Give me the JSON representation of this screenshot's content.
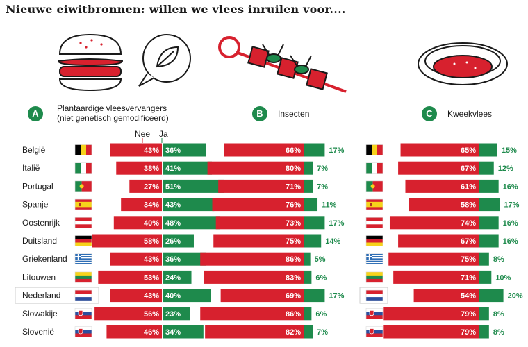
{
  "title": "Nieuwe eiwitbronnen: willen we vlees inruilen voor....",
  "colors": {
    "red": "#d7212e",
    "green": "#1e8a4c",
    "highlight_border": "#cfcfcf"
  },
  "groups": [
    {
      "badge": "A",
      "title_line1": "Plantaardige vleesvervangers",
      "title_line2": "(niet genetisch gemodificeerd)",
      "illustration": "burger-leaf-icon",
      "nee_label": "Nee",
      "ja_label": "Ja"
    },
    {
      "badge": "B",
      "title_line1": "Insecten",
      "illustration": "insect-skewer-icon"
    },
    {
      "badge": "C",
      "title_line1": "Kweekvlees",
      "illustration": "petri-dish-icon"
    }
  ],
  "highlighted_country": "Nederland",
  "chart_data": {
    "type": "bar",
    "categories": [
      "België",
      "Italië",
      "Portugal",
      "Spanje",
      "Oostenrijk",
      "Duitsland",
      "Griekenland",
      "Litouwen",
      "Nederland",
      "Slowakije",
      "Slovenië"
    ],
    "flags": [
      "flag-be",
      "flag-it",
      "flag-pt",
      "flag-es",
      "flag-at",
      "flag-de",
      "flag-gr",
      "flag-lt",
      "flag-nl",
      "flag-sk",
      "flag-si"
    ],
    "groups": [
      {
        "name": "Plantaardige vleesvervangers",
        "series": [
          {
            "name": "Nee",
            "values": [
              43,
              38,
              27,
              34,
              40,
              58,
              43,
              53,
              43,
              56,
              46
            ]
          },
          {
            "name": "Ja",
            "values": [
              36,
              41,
              51,
              43,
              48,
              26,
              36,
              24,
              40,
              23,
              34
            ]
          }
        ]
      },
      {
        "name": "Insecten",
        "series": [
          {
            "name": "Nee",
            "values": [
              66,
              80,
              71,
              76,
              73,
              75,
              86,
              83,
              69,
              86,
              82
            ]
          },
          {
            "name": "Ja",
            "values": [
              17,
              7,
              7,
              11,
              17,
              14,
              5,
              6,
              17,
              6,
              7
            ]
          }
        ]
      },
      {
        "name": "Kweekvlees",
        "series": [
          {
            "name": "Nee",
            "values": [
              65,
              67,
              61,
              58,
              74,
              67,
              75,
              71,
              54,
              79,
              79
            ]
          },
          {
            "name": "Ja",
            "values": [
              15,
              12,
              16,
              17,
              16,
              16,
              8,
              10,
              20,
              8,
              8
            ]
          }
        ]
      }
    ],
    "value_format": "percent"
  }
}
